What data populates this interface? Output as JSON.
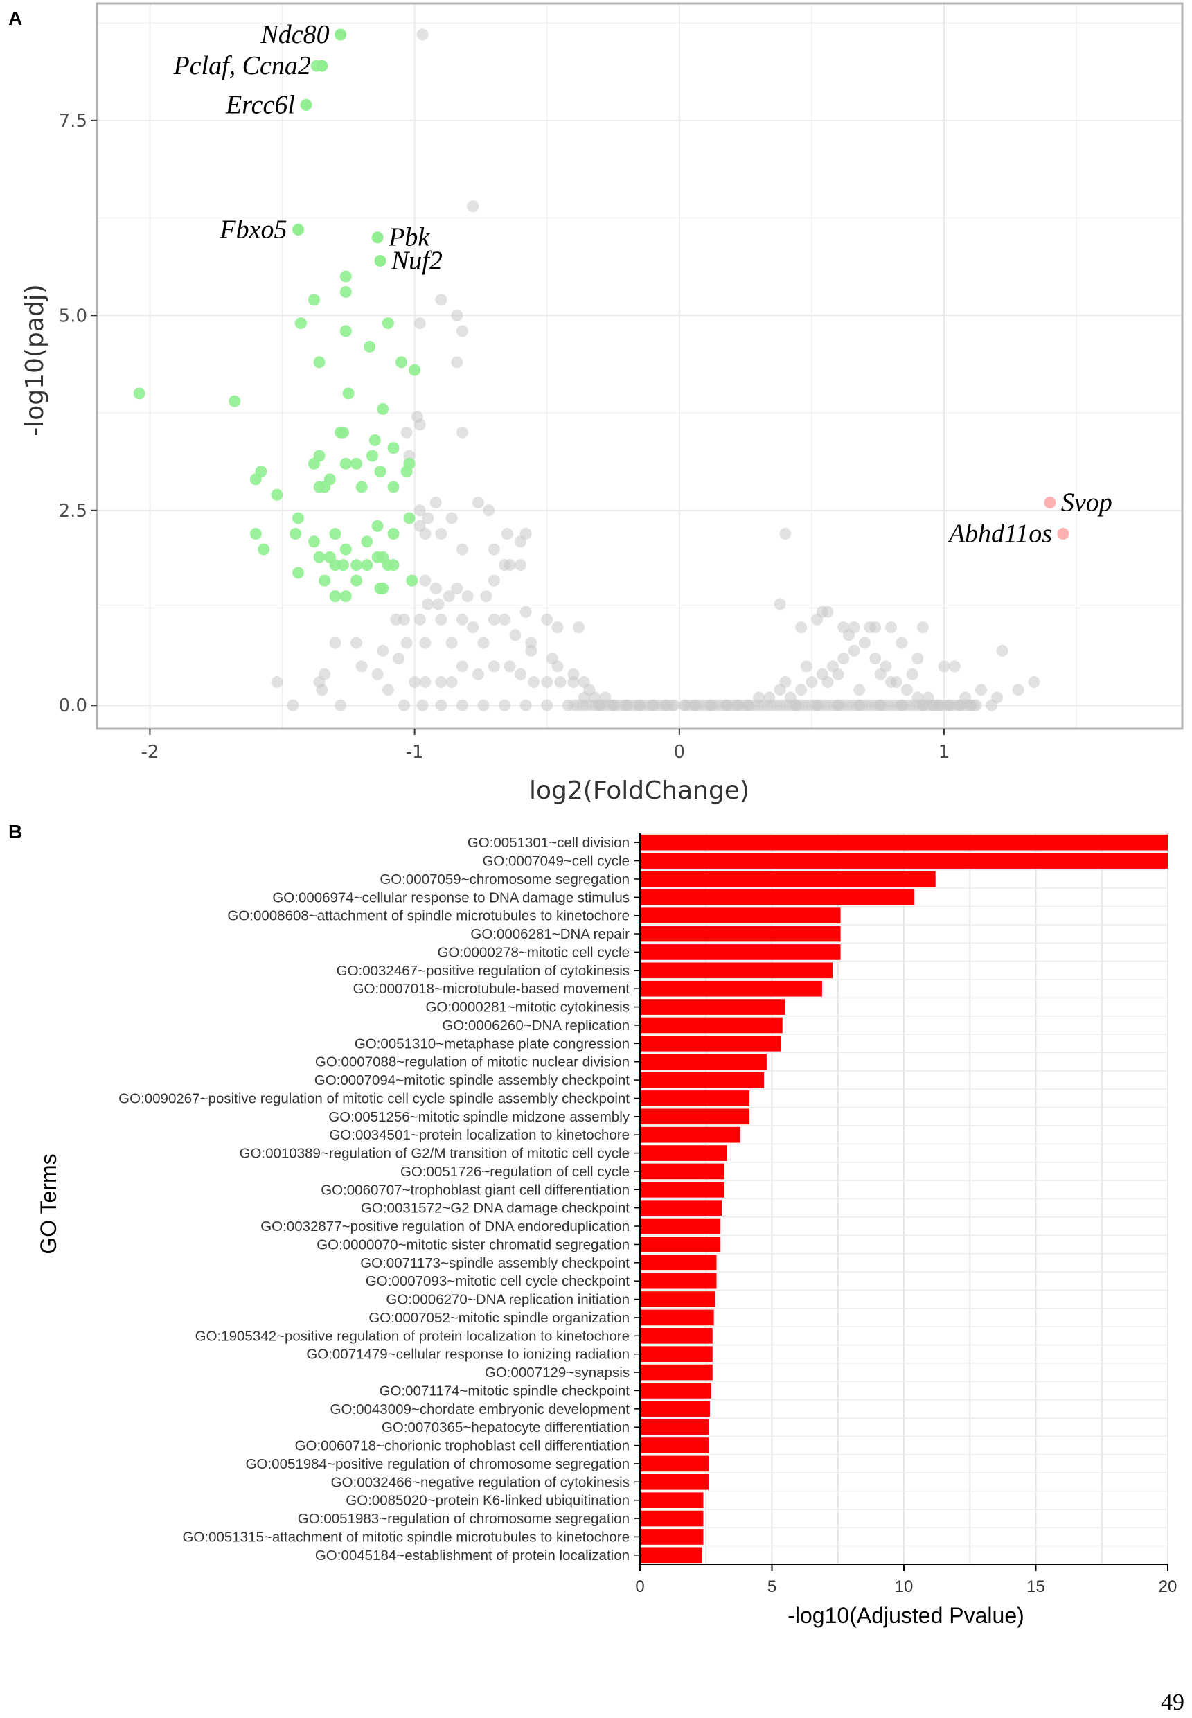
{
  "page_number": "49",
  "chart_data": [
    {
      "panel": "A",
      "type": "scatter",
      "title": "",
      "xlabel": "log2(FoldChange)",
      "ylabel": "-log10(padj)",
      "xlim": [
        -2.2,
        1.9
      ],
      "ylim": [
        -0.3,
        9.0
      ],
      "xticks": [
        {
          "value": -2,
          "label": "-2"
        },
        {
          "value": -1,
          "label": "-1"
        },
        {
          "value": 0,
          "label": "0"
        },
        {
          "value": 1,
          "label": "1"
        }
      ],
      "yticks": [
        {
          "value": 0,
          "label": "0.0"
        },
        {
          "value": 2.5,
          "label": "2.5"
        },
        {
          "value": 5,
          "label": "5.0"
        },
        {
          "value": 7.5,
          "label": "7.5"
        }
      ],
      "colors": {
        "down": "#90ee90",
        "up": "#ffb0b0",
        "ns": "#c8c8c8",
        "grid": "#ebebeb",
        "frame": "#b3b3b3"
      },
      "labeled_points": [
        {
          "gene": "Ndc80",
          "x": -1.28,
          "y": 8.6,
          "group": "down",
          "label_side": "left"
        },
        {
          "gene": "Pclaf, Ccna2",
          "x": -1.35,
          "y": 8.2,
          "group": "down",
          "label_side": "left"
        },
        {
          "gene": "Ercc6l",
          "x": -1.41,
          "y": 7.7,
          "group": "down",
          "label_side": "left"
        },
        {
          "gene": "Fbxo5",
          "x": -1.44,
          "y": 6.1,
          "group": "down",
          "label_side": "left"
        },
        {
          "gene": "Pbk",
          "x": -1.14,
          "y": 6.0,
          "group": "down",
          "label_side": "right"
        },
        {
          "gene": "Nuf2",
          "x": -1.13,
          "y": 5.7,
          "group": "down",
          "label_side": "right"
        },
        {
          "gene": "Svop",
          "x": 1.4,
          "y": 2.6,
          "group": "up",
          "label_side": "right"
        },
        {
          "gene": "Abhd11os",
          "x": 1.45,
          "y": 2.2,
          "group": "up",
          "label_side": "left"
        }
      ],
      "down_points": [
        [
          -1.37,
          8.2
        ],
        [
          -2.04,
          4.0
        ],
        [
          -1.68,
          3.9
        ],
        [
          -1.43,
          4.9
        ],
        [
          -1.38,
          5.2
        ],
        [
          -1.36,
          4.4
        ],
        [
          -1.26,
          5.5
        ],
        [
          -1.26,
          5.3
        ],
        [
          -1.26,
          4.8
        ],
        [
          -1.17,
          4.6
        ],
        [
          -1.1,
          4.9
        ],
        [
          -1.05,
          4.4
        ],
        [
          -1.0,
          4.3
        ],
        [
          -1.25,
          4.0
        ],
        [
          -1.28,
          3.5
        ],
        [
          -1.27,
          3.5
        ],
        [
          -1.12,
          3.8
        ],
        [
          -1.15,
          3.4
        ],
        [
          -1.08,
          3.3
        ],
        [
          -1.02,
          3.1
        ],
        [
          -1.36,
          3.2
        ],
        [
          -1.38,
          3.1
        ],
        [
          -1.36,
          2.8
        ],
        [
          -1.34,
          2.8
        ],
        [
          -1.32,
          2.9
        ],
        [
          -1.26,
          3.1
        ],
        [
          -1.22,
          3.1
        ],
        [
          -1.16,
          3.2
        ],
        [
          -1.13,
          3.0
        ],
        [
          -1.2,
          2.8
        ],
        [
          -1.08,
          2.8
        ],
        [
          -1.03,
          3.0
        ],
        [
          -1.58,
          3.0
        ],
        [
          -1.6,
          2.9
        ],
        [
          -1.52,
          2.7
        ],
        [
          -1.44,
          2.4
        ],
        [
          -1.45,
          2.2
        ],
        [
          -1.6,
          2.2
        ],
        [
          -1.57,
          2.0
        ],
        [
          -1.38,
          2.1
        ],
        [
          -1.3,
          2.2
        ],
        [
          -1.36,
          1.9
        ],
        [
          -1.32,
          1.9
        ],
        [
          -1.26,
          2.0
        ],
        [
          -1.18,
          2.1
        ],
        [
          -1.14,
          2.3
        ],
        [
          -1.14,
          1.9
        ],
        [
          -1.12,
          1.9
        ],
        [
          -1.08,
          2.2
        ],
        [
          -1.02,
          2.4
        ],
        [
          -1.44,
          1.7
        ],
        [
          -1.34,
          1.6
        ],
        [
          -1.3,
          1.8
        ],
        [
          -1.27,
          1.8
        ],
        [
          -1.22,
          1.8
        ],
        [
          -1.18,
          1.8
        ],
        [
          -1.22,
          1.6
        ],
        [
          -1.12,
          1.5
        ],
        [
          -1.08,
          1.8
        ],
        [
          -1.01,
          1.6
        ],
        [
          -1.26,
          1.4
        ],
        [
          -1.3,
          1.4
        ],
        [
          -1.13,
          1.5
        ],
        [
          -1.1,
          1.8
        ]
      ],
      "up_points": [],
      "ns_points": [
        [
          -0.97,
          8.6
        ],
        [
          -0.78,
          6.4
        ],
        [
          -0.9,
          5.2
        ],
        [
          -0.84,
          5.0
        ],
        [
          -0.98,
          4.9
        ],
        [
          -0.82,
          4.8
        ],
        [
          -0.84,
          4.4
        ],
        [
          -0.82,
          3.5
        ],
        [
          -0.99,
          3.7
        ],
        [
          -0.98,
          3.6
        ],
        [
          -1.03,
          3.5
        ],
        [
          -1.02,
          3.2
        ],
        [
          -0.92,
          2.6
        ],
        [
          -0.98,
          2.5
        ],
        [
          -0.95,
          2.4
        ],
        [
          -0.86,
          2.4
        ],
        [
          -0.76,
          2.6
        ],
        [
          -0.72,
          2.5
        ],
        [
          -0.98,
          2.3
        ],
        [
          -0.96,
          2.2
        ],
        [
          -0.9,
          2.2
        ],
        [
          -0.82,
          2.0
        ],
        [
          -0.65,
          2.2
        ],
        [
          -0.58,
          2.2
        ],
        [
          -0.6,
          2.1
        ],
        [
          -0.7,
          2.0
        ],
        [
          -0.66,
          1.8
        ],
        [
          -0.7,
          1.6
        ],
        [
          -0.64,
          1.8
        ],
        [
          -0.6,
          1.8
        ],
        [
          -0.96,
          1.6
        ],
        [
          -0.92,
          1.5
        ],
        [
          -0.84,
          1.5
        ],
        [
          -0.87,
          1.4
        ],
        [
          -0.95,
          1.3
        ],
        [
          -0.91,
          1.3
        ],
        [
          -0.8,
          1.4
        ],
        [
          -0.73,
          1.4
        ],
        [
          -1.07,
          1.1
        ],
        [
          -1.04,
          1.1
        ],
        [
          -0.98,
          1.1
        ],
        [
          -0.9,
          1.1
        ],
        [
          -0.82,
          1.1
        ],
        [
          -0.78,
          1.0
        ],
        [
          -0.7,
          1.1
        ],
        [
          -0.66,
          1.1
        ],
        [
          -0.58,
          1.2
        ],
        [
          -0.5,
          1.1
        ],
        [
          -0.46,
          1.0
        ],
        [
          -0.38,
          1.0
        ],
        [
          -0.62,
          0.9
        ],
        [
          -0.56,
          0.8
        ],
        [
          -0.74,
          0.8
        ],
        [
          -0.86,
          0.8
        ],
        [
          -0.96,
          0.8
        ],
        [
          -1.03,
          0.8
        ],
        [
          -1.06,
          0.6
        ],
        [
          -1.12,
          0.7
        ],
        [
          -1.22,
          0.8
        ],
        [
          -1.3,
          0.8
        ],
        [
          -1.2,
          0.5
        ],
        [
          -1.14,
          0.4
        ],
        [
          -1.34,
          0.4
        ],
        [
          -1.35,
          0.2
        ],
        [
          -1.28,
          0.0
        ],
        [
          -1.46,
          0.0
        ],
        [
          -1.52,
          0.3
        ],
        [
          -1.36,
          0.3
        ],
        [
          -1.1,
          0.2
        ],
        [
          -1.0,
          0.3
        ],
        [
          -0.96,
          0.3
        ],
        [
          -0.9,
          0.3
        ],
        [
          -0.86,
          0.3
        ],
        [
          -0.82,
          0.5
        ],
        [
          -0.76,
          0.4
        ],
        [
          -0.7,
          0.5
        ],
        [
          -0.64,
          0.5
        ],
        [
          -0.6,
          0.4
        ],
        [
          -0.55,
          0.3
        ],
        [
          -0.5,
          0.3
        ],
        [
          -0.45,
          0.3
        ],
        [
          -0.4,
          0.3
        ],
        [
          -0.36,
          0.3
        ],
        [
          -0.34,
          0.2
        ],
        [
          -0.48,
          0.6
        ],
        [
          -0.56,
          0.7
        ],
        [
          -0.46,
          0.5
        ],
        [
          -0.4,
          0.4
        ],
        [
          -0.36,
          0.1
        ],
        [
          -0.32,
          0.1
        ],
        [
          -0.28,
          0.1
        ],
        [
          -0.3,
          0.0
        ],
        [
          -0.25,
          0.0
        ],
        [
          -0.2,
          0.0
        ],
        [
          -0.15,
          0.0
        ],
        [
          -0.1,
          0.0
        ],
        [
          -0.05,
          0.0
        ],
        [
          -0.02,
          0.0
        ],
        [
          0.02,
          0.0
        ],
        [
          0.06,
          0.0
        ],
        [
          0.12,
          0.0
        ],
        [
          0.18,
          0.0
        ],
        [
          0.22,
          0.0
        ],
        [
          0.26,
          0.0
        ],
        [
          0.3,
          0.1
        ],
        [
          0.34,
          0.1
        ],
        [
          0.38,
          0.2
        ],
        [
          0.4,
          0.3
        ],
        [
          0.42,
          0.1
        ],
        [
          0.46,
          0.2
        ],
        [
          0.5,
          0.3
        ],
        [
          0.54,
          0.4
        ],
        [
          0.58,
          0.5
        ],
        [
          0.62,
          0.6
        ],
        [
          0.66,
          0.7
        ],
        [
          0.7,
          0.8
        ],
        [
          0.74,
          0.6
        ],
        [
          0.78,
          0.5
        ],
        [
          0.82,
          0.3
        ],
        [
          0.86,
          0.2
        ],
        [
          0.9,
          0.1
        ],
        [
          0.94,
          0.1
        ],
        [
          0.98,
          0.0
        ],
        [
          1.02,
          0.0
        ],
        [
          1.06,
          0.0
        ],
        [
          1.08,
          0.1
        ],
        [
          1.12,
          0.0
        ],
        [
          1.18,
          0.0
        ],
        [
          1.2,
          0.1
        ],
        [
          1.28,
          0.2
        ],
        [
          1.34,
          0.3
        ],
        [
          0.38,
          1.3
        ],
        [
          0.46,
          1.0
        ],
        [
          0.52,
          1.1
        ],
        [
          0.54,
          1.2
        ],
        [
          0.56,
          1.2
        ],
        [
          0.62,
          1.0
        ],
        [
          0.64,
          0.9
        ],
        [
          0.66,
          1.0
        ],
        [
          0.72,
          1.0
        ],
        [
          0.74,
          1.0
        ],
        [
          0.8,
          1.0
        ],
        [
          0.84,
          0.8
        ],
        [
          0.92,
          1.0
        ],
        [
          1.0,
          0.5
        ],
        [
          1.04,
          0.5
        ],
        [
          1.22,
          0.7
        ],
        [
          0.4,
          2.2
        ],
        [
          0.48,
          0.5
        ],
        [
          0.56,
          0.3
        ],
        [
          0.6,
          0.4
        ],
        [
          0.68,
          0.2
        ],
        [
          0.76,
          0.4
        ],
        [
          0.8,
          0.3
        ],
        [
          0.88,
          0.4
        ],
        [
          0.9,
          0.6
        ],
        [
          0.96,
          0.0
        ],
        [
          1.1,
          0.0
        ],
        [
          1.14,
          0.2
        ],
        [
          0.44,
          0.0
        ],
        [
          0.52,
          0.0
        ],
        [
          0.6,
          0.0
        ],
        [
          0.68,
          0.0
        ],
        [
          0.76,
          0.0
        ],
        [
          0.84,
          0.0
        ],
        [
          0.92,
          0.0
        ],
        [
          -0.42,
          0.0
        ],
        [
          -0.5,
          0.0
        ],
        [
          -0.58,
          0.0
        ],
        [
          -0.66,
          0.0
        ],
        [
          -0.74,
          0.0
        ],
        [
          -0.82,
          0.0
        ],
        [
          -0.9,
          0.0
        ],
        [
          -0.97,
          0.0
        ],
        [
          -1.04,
          0.0
        ]
      ]
    },
    {
      "panel": "B",
      "type": "bar",
      "orientation": "horizontal",
      "title": "",
      "xlabel": "-log10(Adjusted Pvalue)",
      "ylabel": "GO Terms",
      "xlim": [
        0,
        20
      ],
      "xticks": [
        0,
        5,
        10,
        15,
        20
      ],
      "bar_color": "#ff0000",
      "categories": [
        "GO:0051301~cell division",
        "GO:0007049~cell cycle",
        "GO:0007059~chromosome segregation",
        "GO:0006974~cellular response to DNA damage stimulus",
        "GO:0008608~attachment of spindle microtubules to kinetochore",
        "GO:0006281~DNA repair",
        "GO:0000278~mitotic cell cycle",
        "GO:0032467~positive regulation of cytokinesis",
        "GO:0007018~microtubule-based movement",
        "GO:0000281~mitotic cytokinesis",
        "GO:0006260~DNA replication",
        "GO:0051310~metaphase plate congression",
        "GO:0007088~regulation of mitotic nuclear division",
        "GO:0007094~mitotic spindle assembly checkpoint",
        "GO:0090267~positive regulation of mitotic cell cycle spindle assembly checkpoint",
        "GO:0051256~mitotic spindle midzone assembly",
        "GO:0034501~protein localization to kinetochore",
        "GO:0010389~regulation of G2/M transition of mitotic cell cycle",
        "GO:0051726~regulation of cell cycle",
        "GO:0060707~trophoblast giant cell differentiation",
        "GO:0031572~G2 DNA damage checkpoint",
        "GO:0032877~positive regulation of DNA endoreduplication",
        "GO:0000070~mitotic sister chromatid segregation",
        "GO:0071173~spindle assembly checkpoint",
        "GO:0007093~mitotic cell cycle checkpoint",
        "GO:0006270~DNA replication initiation",
        "GO:0007052~mitotic spindle organization",
        "GO:1905342~positive regulation of protein localization to kinetochore",
        "GO:0071479~cellular response to ionizing radiation",
        "GO:0007129~synapsis",
        "GO:0071174~mitotic spindle checkpoint",
        "GO:0043009~chordate embryonic development",
        "GO:0070365~hepatocyte differentiation",
        "GO:0060718~chorionic trophoblast cell differentiation",
        "GO:0051984~positive regulation of chromosome segregation",
        "GO:0032466~negative regulation of cytokinesis",
        "GO:0085020~protein K6-linked ubiquitination",
        "GO:0051983~regulation of chromosome segregation",
        "GO:0051315~attachment of mitotic spindle microtubules to kinetochore",
        "GO:0045184~establishment of protein localization"
      ],
      "values": [
        20.0,
        20.0,
        11.2,
        10.4,
        7.6,
        7.6,
        7.6,
        7.3,
        6.9,
        5.5,
        5.4,
        5.35,
        4.8,
        4.7,
        4.15,
        4.15,
        3.8,
        3.3,
        3.2,
        3.2,
        3.1,
        3.05,
        3.05,
        2.9,
        2.9,
        2.85,
        2.8,
        2.75,
        2.75,
        2.75,
        2.7,
        2.65,
        2.6,
        2.6,
        2.6,
        2.6,
        2.4,
        2.4,
        2.4,
        2.35
      ]
    }
  ]
}
